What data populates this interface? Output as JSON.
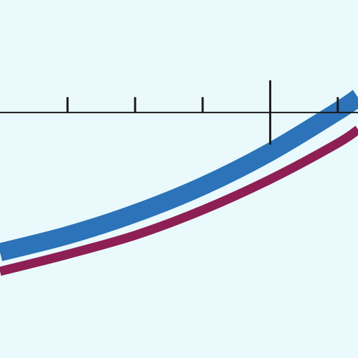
{
  "background": "#e9f9fc",
  "chart_data": {
    "type": "line",
    "title": "",
    "xlabel": "",
    "ylabel": "",
    "xlim": [
      -4,
      1.3
    ],
    "ylim": [
      -3.6,
      1.65
    ],
    "grid": false,
    "legend": "none",
    "axis_color": "#1a1a1a",
    "x_ticks": [
      -3,
      -2,
      -1,
      1
    ],
    "series": [
      {
        "color": "#2c73b9",
        "points": [
          [
            -4,
            -2.05
          ],
          [
            -3,
            -1.8
          ],
          [
            -2,
            -1.48
          ],
          [
            -1,
            -1.08
          ],
          [
            0,
            -0.58
          ],
          [
            1,
            0.02
          ],
          [
            1.3,
            0.22
          ]
        ]
      },
      {
        "color": "#8e1f55",
        "points": [
          [
            -4,
            -2.33
          ],
          [
            -3,
            -2.08
          ],
          [
            -2,
            -1.8
          ],
          [
            -1,
            -1.43
          ],
          [
            0,
            -0.98
          ],
          [
            1,
            -0.45
          ],
          [
            1.3,
            -0.25
          ]
        ]
      }
    ]
  }
}
